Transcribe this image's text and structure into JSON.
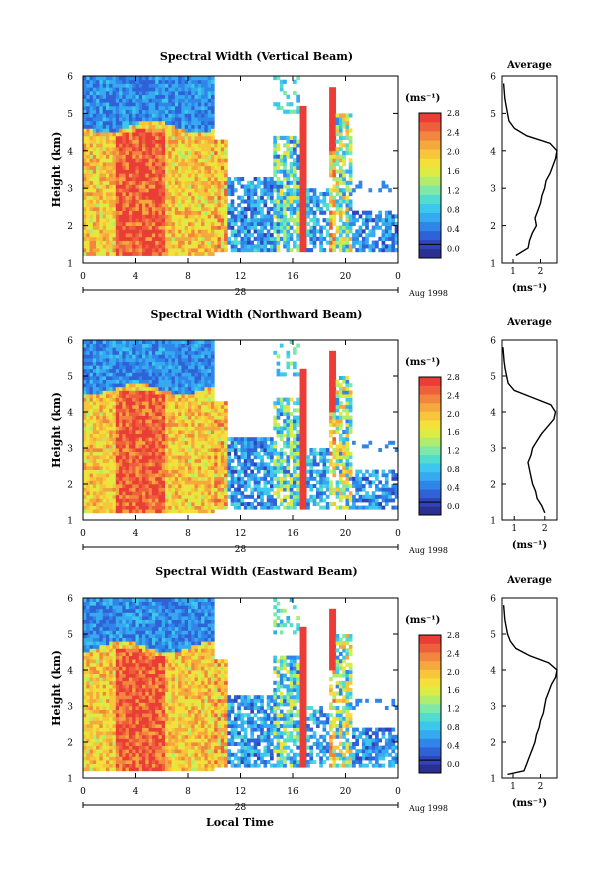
{
  "figure": {
    "xlabel": "Local Time"
  },
  "colorbar": {
    "unit_label": "(ms⁻¹)",
    "ticks": [
      "0.0",
      "0.4",
      "0.8",
      "1.2",
      "1.6",
      "2.0",
      "2.4",
      "2.8"
    ],
    "colors": [
      "#2b2f8f",
      "#2f44b8",
      "#2f62d6",
      "#2f86e8",
      "#36aaf0",
      "#3cc8ec",
      "#52dcd0",
      "#7ee8a8",
      "#b0ec6e",
      "#dcec44",
      "#f4e038",
      "#f7c63a",
      "#f5a83e",
      "#f2863e",
      "#ee5f3c",
      "#e93d36"
    ]
  },
  "chart_data": [
    {
      "type": "heatmap",
      "title": "Spectral Width (Vertical Beam)",
      "ylabel": "Height (km)",
      "ylim": [
        1,
        6
      ],
      "xlim": [
        0,
        24
      ],
      "x_ticks": [
        "0",
        "4",
        "8",
        "12",
        "16",
        "20",
        "0"
      ],
      "y_ticks": [
        "1",
        "2",
        "3",
        "4",
        "5",
        "6"
      ],
      "date_label": "28",
      "date_note": "Aug 1998",
      "value_range": [
        0.0,
        3.0
      ],
      "description_values": {
        "layer_boundary_km": 4.5,
        "low_layer_width": 2.6,
        "upper_layer_width": 0.6
      }
    },
    {
      "type": "line",
      "title": "Average",
      "ylabel": "",
      "ylim": [
        1,
        6
      ],
      "xlim": [
        0.6,
        2.6
      ],
      "x_ticks": [
        "1",
        "2"
      ],
      "y_ticks": [
        "1",
        "2",
        "3",
        "4",
        "5",
        "6"
      ],
      "xlabel": "(ms⁻¹)",
      "series": [
        {
          "y": [
            1.2,
            1.4,
            1.6,
            1.8,
            2.0,
            2.2,
            2.4,
            2.6,
            2.8,
            3.0,
            3.2,
            3.4,
            3.6,
            3.8,
            4.0,
            4.2,
            4.4,
            4.6,
            4.8,
            5.0,
            5.2,
            5.4,
            5.6,
            5.8
          ],
          "x": [
            1.1,
            1.55,
            1.6,
            1.7,
            1.85,
            1.8,
            1.9,
            2.0,
            2.05,
            2.15,
            2.2,
            2.35,
            2.45,
            2.55,
            2.6,
            2.35,
            1.5,
            1.05,
            0.85,
            0.8,
            0.75,
            0.7,
            0.68,
            0.66
          ]
        }
      ]
    },
    {
      "type": "heatmap",
      "title": "Spectral Width (Northward Beam)",
      "ylabel": "Height (km)",
      "ylim": [
        1,
        6
      ],
      "xlim": [
        0,
        24
      ],
      "x_ticks": [
        "0",
        "4",
        "8",
        "12",
        "16",
        "20",
        "0"
      ],
      "y_ticks": [
        "1",
        "2",
        "3",
        "4",
        "5",
        "6"
      ],
      "date_label": "28",
      "date_note": "Aug 1998",
      "value_range": [
        0.0,
        3.0
      ]
    },
    {
      "type": "line",
      "title": "Average",
      "ylim": [
        1,
        6
      ],
      "xlim": [
        0.6,
        2.4
      ],
      "x_ticks": [
        "1",
        "2"
      ],
      "y_ticks": [
        "1",
        "2",
        "3",
        "4",
        "5",
        "6"
      ],
      "xlabel": "(ms⁻¹)",
      "series": [
        {
          "y": [
            1.2,
            1.4,
            1.6,
            1.8,
            2.0,
            2.2,
            2.4,
            2.6,
            2.8,
            3.0,
            3.2,
            3.4,
            3.6,
            3.8,
            4.0,
            4.2,
            4.4,
            4.6,
            4.8,
            5.0,
            5.2,
            5.4,
            5.6,
            5.8
          ],
          "x": [
            2.0,
            1.9,
            1.75,
            1.7,
            1.6,
            1.55,
            1.5,
            1.45,
            1.55,
            1.6,
            1.75,
            1.9,
            2.1,
            2.3,
            2.35,
            2.2,
            1.6,
            1.0,
            0.8,
            0.75,
            0.7,
            0.67,
            0.65,
            0.63
          ]
        }
      ]
    },
    {
      "type": "heatmap",
      "title": "Spectral Width (Eastward Beam)",
      "ylabel": "Height (km)",
      "ylim": [
        1,
        6
      ],
      "xlim": [
        0,
        24
      ],
      "x_ticks": [
        "0",
        "4",
        "8",
        "12",
        "16",
        "20",
        "0"
      ],
      "y_ticks": [
        "1",
        "2",
        "3",
        "4",
        "5",
        "6"
      ],
      "date_label": "28",
      "date_note": "Aug 1998",
      "value_range": [
        0.0,
        3.0
      ]
    },
    {
      "type": "line",
      "title": "Average",
      "ylim": [
        1,
        6
      ],
      "xlim": [
        0.6,
        2.6
      ],
      "x_ticks": [
        "1",
        "2"
      ],
      "y_ticks": [
        "1",
        "2",
        "3",
        "4",
        "5",
        "6"
      ],
      "xlabel": "(ms⁻¹)",
      "series": [
        {
          "y": [
            1.1,
            1.2,
            1.4,
            1.6,
            1.8,
            2.0,
            2.2,
            2.4,
            2.6,
            2.8,
            3.0,
            3.2,
            3.4,
            3.6,
            3.8,
            4.0,
            4.2,
            4.4,
            4.6,
            4.8,
            5.0,
            5.2,
            5.4,
            5.6,
            5.8
          ],
          "x": [
            0.8,
            1.4,
            1.5,
            1.6,
            1.7,
            1.8,
            1.85,
            1.95,
            2.0,
            2.1,
            2.15,
            2.2,
            2.3,
            2.4,
            2.55,
            2.6,
            2.3,
            1.6,
            1.1,
            0.9,
            0.8,
            0.75,
            0.7,
            0.68,
            0.66
          ]
        }
      ]
    }
  ]
}
